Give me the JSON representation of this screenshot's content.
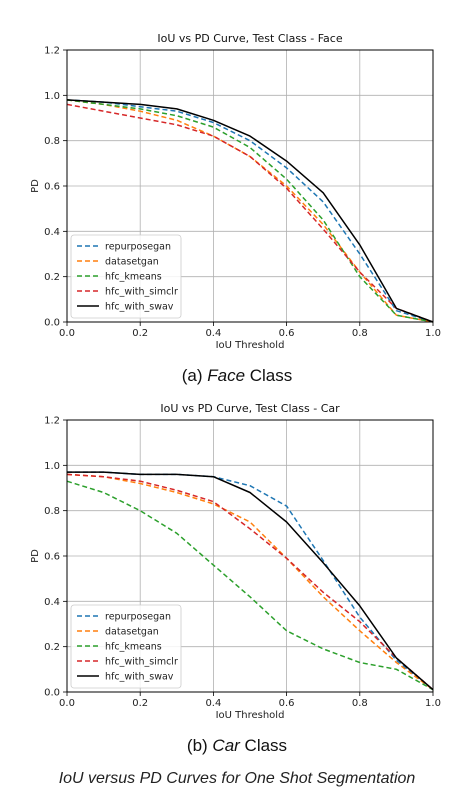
{
  "chart_data": [
    {
      "type": "line",
      "title": "IoU vs PD Curve, Test Class - Face",
      "xlabel": "IoU Threshold",
      "ylabel": "PD",
      "xlim": [
        0,
        1
      ],
      "ylim": [
        0,
        1.2
      ],
      "xticks": [
        "0.0",
        "0.2",
        "0.4",
        "0.6",
        "0.8",
        "1.0"
      ],
      "yticks": [
        "0.0",
        "0.2",
        "0.4",
        "0.6",
        "0.8",
        "1.0",
        "1.2"
      ],
      "grid": true,
      "legend_position": "lower-left",
      "series": [
        {
          "name": "repurposegan",
          "color": "#1f77b4",
          "dash": "dashed",
          "x": [
            0,
            0.1,
            0.2,
            0.3,
            0.4,
            0.5,
            0.6,
            0.7,
            0.8,
            0.9,
            1.0
          ],
          "y": [
            0.98,
            0.97,
            0.95,
            0.93,
            0.88,
            0.8,
            0.68,
            0.53,
            0.3,
            0.05,
            0.0
          ]
        },
        {
          "name": "datasetgan",
          "color": "#ff7f0e",
          "dash": "dashed",
          "x": [
            0,
            0.1,
            0.2,
            0.3,
            0.4,
            0.5,
            0.6,
            0.7,
            0.8,
            0.9,
            1.0
          ],
          "y": [
            0.98,
            0.96,
            0.93,
            0.89,
            0.82,
            0.73,
            0.6,
            0.43,
            0.22,
            0.03,
            0.0
          ]
        },
        {
          "name": "hfc_kmeans",
          "color": "#2ca02c",
          "dash": "dashed",
          "x": [
            0,
            0.1,
            0.2,
            0.3,
            0.4,
            0.5,
            0.6,
            0.7,
            0.8,
            0.9,
            1.0
          ],
          "y": [
            0.98,
            0.96,
            0.94,
            0.91,
            0.86,
            0.77,
            0.63,
            0.45,
            0.2,
            0.03,
            0.0
          ]
        },
        {
          "name": "hfc_with_simclr",
          "color": "#d62728",
          "dash": "dashed",
          "x": [
            0,
            0.1,
            0.2,
            0.3,
            0.4,
            0.5,
            0.6,
            0.7,
            0.8,
            0.9,
            1.0
          ],
          "y": [
            0.96,
            0.93,
            0.9,
            0.87,
            0.82,
            0.73,
            0.59,
            0.41,
            0.22,
            0.06,
            0.0
          ]
        },
        {
          "name": "hfc_with_swav",
          "color": "#000000",
          "dash": "solid",
          "x": [
            0,
            0.1,
            0.2,
            0.3,
            0.4,
            0.5,
            0.6,
            0.7,
            0.8,
            0.9,
            1.0
          ],
          "y": [
            0.98,
            0.97,
            0.96,
            0.94,
            0.89,
            0.82,
            0.71,
            0.57,
            0.34,
            0.06,
            0.0
          ]
        }
      ]
    },
    {
      "type": "line",
      "title": "IoU vs PD Curve, Test Class - Car",
      "xlabel": "IoU Threshold",
      "ylabel": "PD",
      "xlim": [
        0,
        1
      ],
      "ylim": [
        0,
        1.2
      ],
      "xticks": [
        "0.0",
        "0.2",
        "0.4",
        "0.6",
        "0.8",
        "1.0"
      ],
      "yticks": [
        "0.0",
        "0.2",
        "0.4",
        "0.6",
        "0.8",
        "1.0",
        "1.2"
      ],
      "grid": true,
      "legend_position": "lower-left",
      "series": [
        {
          "name": "repurposegan",
          "color": "#1f77b4",
          "dash": "dashed",
          "x": [
            0,
            0.1,
            0.2,
            0.3,
            0.4,
            0.5,
            0.6,
            0.7,
            0.8,
            0.9,
            1.0
          ],
          "y": [
            0.97,
            0.97,
            0.96,
            0.96,
            0.95,
            0.91,
            0.82,
            0.58,
            0.33,
            0.14,
            0.01
          ]
        },
        {
          "name": "datasetgan",
          "color": "#ff7f0e",
          "dash": "dashed",
          "x": [
            0,
            0.1,
            0.2,
            0.3,
            0.4,
            0.5,
            0.6,
            0.7,
            0.8,
            0.9,
            1.0
          ],
          "y": [
            0.96,
            0.95,
            0.92,
            0.88,
            0.83,
            0.75,
            0.59,
            0.42,
            0.27,
            0.13,
            0.01
          ]
        },
        {
          "name": "hfc_kmeans",
          "color": "#2ca02c",
          "dash": "dashed",
          "x": [
            0,
            0.1,
            0.2,
            0.3,
            0.4,
            0.5,
            0.6,
            0.7,
            0.8,
            0.9,
            1.0
          ],
          "y": [
            0.93,
            0.88,
            0.8,
            0.7,
            0.56,
            0.42,
            0.27,
            0.19,
            0.13,
            0.1,
            0.01
          ]
        },
        {
          "name": "hfc_with_simclr",
          "color": "#d62728",
          "dash": "dashed",
          "x": [
            0,
            0.1,
            0.2,
            0.3,
            0.4,
            0.5,
            0.6,
            0.7,
            0.8,
            0.9,
            1.0
          ],
          "y": [
            0.96,
            0.95,
            0.93,
            0.89,
            0.84,
            0.72,
            0.59,
            0.44,
            0.31,
            0.15,
            0.01
          ]
        },
        {
          "name": "hfc_with_swav",
          "color": "#000000",
          "dash": "solid",
          "x": [
            0,
            0.1,
            0.2,
            0.3,
            0.4,
            0.5,
            0.6,
            0.7,
            0.8,
            0.9,
            1.0
          ],
          "y": [
            0.97,
            0.97,
            0.96,
            0.96,
            0.95,
            0.88,
            0.75,
            0.57,
            0.38,
            0.15,
            0.01
          ]
        }
      ]
    }
  ],
  "captions": {
    "face_prefix": "(a) ",
    "face_name": "Face",
    "face_suffix": " Class",
    "car_prefix": "(b) ",
    "car_name": "Car",
    "car_suffix": " Class",
    "figure": "IoU versus PD Curves for One Shot Segmentation"
  }
}
